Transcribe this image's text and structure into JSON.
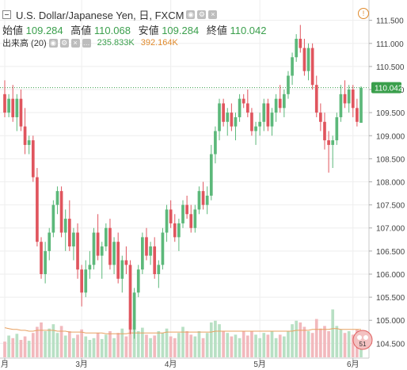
{
  "header": {
    "title": "U.S. Dollar/Japanese Yen, 日, FXCM",
    "ohlc": [
      {
        "label": "始値",
        "value": "109.284"
      },
      {
        "label": "高値",
        "value": "110.068"
      },
      {
        "label": "安値",
        "value": "109.284"
      },
      {
        "label": "終値",
        "value": "110.042"
      }
    ],
    "volume_label": "出来高 (20)",
    "volume_value": "235.833K",
    "volume_ma": "392.164K",
    "info_glyph": "!"
  },
  "badge_text": "51",
  "colors": {
    "up": "#5cb87a",
    "down": "#e0555e",
    "vol_up": "#b8e0c4",
    "vol_down": "#f2b9bd",
    "ma": "#e8a060",
    "price_line": "#3a9f4c",
    "grid": "#eeeeee"
  },
  "chart_data": {
    "type": "candlestick",
    "symbol": "U.S. Dollar/Japanese Yen",
    "interval": "日",
    "source": "FXCM",
    "y_ticks": [
      "111.500",
      "111.000",
      "110.500",
      "110.000",
      "109.500",
      "109.000",
      "108.500",
      "108.000",
      "107.500",
      "107.000",
      "106.500",
      "106.000",
      "105.500",
      "105.000",
      "104.500"
    ],
    "ylim": [
      104.3,
      111.7
    ],
    "x_ticks": [
      {
        "label": "月",
        "index": 0
      },
      {
        "label": "3月",
        "index": 19
      },
      {
        "label": "4月",
        "index": 41
      },
      {
        "label": "5月",
        "index": 63
      },
      {
        "label": "6月",
        "index": 86
      }
    ],
    "last_price": "110.042",
    "candles": [
      [
        109.9,
        110.2,
        109.4,
        109.5
      ],
      [
        109.5,
        109.9,
        109.4,
        109.8
      ],
      [
        109.8,
        110.1,
        109.3,
        109.4
      ],
      [
        109.4,
        109.9,
        109.1,
        109.8
      ],
      [
        109.8,
        110.0,
        109.1,
        109.2
      ],
      [
        109.2,
        109.6,
        108.6,
        108.8
      ],
      [
        108.8,
        109.0,
        108.6,
        108.9
      ],
      [
        108.9,
        109.0,
        108.0,
        108.1
      ],
      [
        108.1,
        108.3,
        106.6,
        106.7
      ],
      [
        106.7,
        106.8,
        105.9,
        106.0
      ],
      [
        106.0,
        106.7,
        105.8,
        106.5
      ],
      [
        106.5,
        107.0,
        106.3,
        106.9
      ],
      [
        106.9,
        107.6,
        106.8,
        107.5
      ],
      [
        107.5,
        107.9,
        107.3,
        107.8
      ],
      [
        107.8,
        107.9,
        106.8,
        106.9
      ],
      [
        106.9,
        107.4,
        106.5,
        107.2
      ],
      [
        107.2,
        107.6,
        106.5,
        106.6
      ],
      [
        106.6,
        107.0,
        106.3,
        106.9
      ],
      [
        106.9,
        107.1,
        105.9,
        106.1
      ],
      [
        106.1,
        106.2,
        105.3,
        105.6
      ],
      [
        105.6,
        106.3,
        105.5,
        106.1
      ],
      [
        106.1,
        106.5,
        105.9,
        106.2
      ],
      [
        106.2,
        107.0,
        106.1,
        106.9
      ],
      [
        106.9,
        107.3,
        106.3,
        106.4
      ],
      [
        106.4,
        106.7,
        105.9,
        106.6
      ],
      [
        106.6,
        107.1,
        106.5,
        107.0
      ],
      [
        107.0,
        107.2,
        106.1,
        106.2
      ],
      [
        106.2,
        106.8,
        106.0,
        106.7
      ],
      [
        106.7,
        106.9,
        105.8,
        105.9
      ],
      [
        105.9,
        106.4,
        105.6,
        106.3
      ],
      [
        106.3,
        106.6,
        106.0,
        106.2
      ],
      [
        106.2,
        106.3,
        104.7,
        104.8
      ],
      [
        104.8,
        105.7,
        104.6,
        105.6
      ],
      [
        105.6,
        106.2,
        105.5,
        106.1
      ],
      [
        106.1,
        106.9,
        106.0,
        106.8
      ],
      [
        106.8,
        107.0,
        106.3,
        106.4
      ],
      [
        106.4,
        106.7,
        106.2,
        106.6
      ],
      [
        106.6,
        106.8,
        105.9,
        106.0
      ],
      [
        106.0,
        106.3,
        105.7,
        106.2
      ],
      [
        106.2,
        107.0,
        106.1,
        106.9
      ],
      [
        106.9,
        107.5,
        106.7,
        107.4
      ],
      [
        107.4,
        107.6,
        107.0,
        107.1
      ],
      [
        107.1,
        107.3,
        106.7,
        106.8
      ],
      [
        106.8,
        107.2,
        106.5,
        107.1
      ],
      [
        107.1,
        107.6,
        107.0,
        107.5
      ],
      [
        107.5,
        107.7,
        107.2,
        107.3
      ],
      [
        107.3,
        107.5,
        106.9,
        107.0
      ],
      [
        107.0,
        107.5,
        106.9,
        107.4
      ],
      [
        107.4,
        107.9,
        107.3,
        107.8
      ],
      [
        107.8,
        108.0,
        107.4,
        107.5
      ],
      [
        107.5,
        107.9,
        107.3,
        107.7
      ],
      [
        107.7,
        108.8,
        107.6,
        108.6
      ],
      [
        108.6,
        109.2,
        108.4,
        109.1
      ],
      [
        109.1,
        109.8,
        108.9,
        109.7
      ],
      [
        109.7,
        109.8,
        109.2,
        109.3
      ],
      [
        109.3,
        109.6,
        109.0,
        109.5
      ],
      [
        109.5,
        109.7,
        109.1,
        109.2
      ],
      [
        109.2,
        109.5,
        108.9,
        109.4
      ],
      [
        109.4,
        109.9,
        109.3,
        109.8
      ],
      [
        109.8,
        109.9,
        109.6,
        109.7
      ],
      [
        109.7,
        110.0,
        109.4,
        109.5
      ],
      [
        109.5,
        109.6,
        109.0,
        109.1
      ],
      [
        109.1,
        109.3,
        108.8,
        109.2
      ],
      [
        109.2,
        109.5,
        109.0,
        109.3
      ],
      [
        109.3,
        109.8,
        109.1,
        109.7
      ],
      [
        109.7,
        109.8,
        109.1,
        109.2
      ],
      [
        109.2,
        109.6,
        109.0,
        109.5
      ],
      [
        109.5,
        109.9,
        109.3,
        109.8
      ],
      [
        109.8,
        110.1,
        109.5,
        109.6
      ],
      [
        109.6,
        110.0,
        109.4,
        109.9
      ],
      [
        109.9,
        110.4,
        109.8,
        110.3
      ],
      [
        110.3,
        110.8,
        110.1,
        110.7
      ],
      [
        110.7,
        111.2,
        110.6,
        111.1
      ],
      [
        111.1,
        111.4,
        110.8,
        110.9
      ],
      [
        110.9,
        111.1,
        110.3,
        110.4
      ],
      [
        110.4,
        111.0,
        110.2,
        110.9
      ],
      [
        110.9,
        111.0,
        110.0,
        110.1
      ],
      [
        110.1,
        110.3,
        109.4,
        109.5
      ],
      [
        109.5,
        109.7,
        109.1,
        109.3
      ],
      [
        109.3,
        109.5,
        108.7,
        108.9
      ],
      [
        108.9,
        109.1,
        108.2,
        108.8
      ],
      [
        108.8,
        109.0,
        108.3,
        108.9
      ],
      [
        108.9,
        109.5,
        108.8,
        109.4
      ],
      [
        109.4,
        110.1,
        109.3,
        109.9
      ],
      [
        109.9,
        110.2,
        109.6,
        109.7
      ],
      [
        109.7,
        110.1,
        109.5,
        110.0
      ],
      [
        110.0,
        110.1,
        109.4,
        109.6
      ],
      [
        109.6,
        109.8,
        109.2,
        109.3
      ],
      [
        109.28,
        110.07,
        109.28,
        110.04
      ]
    ],
    "volume": [
      0.18,
      0.25,
      0.22,
      0.27,
      0.2,
      0.24,
      0.19,
      0.28,
      0.35,
      0.4,
      0.3,
      0.33,
      0.38,
      0.28,
      0.36,
      0.25,
      0.3,
      0.22,
      0.26,
      0.32,
      0.24,
      0.2,
      0.22,
      0.28,
      0.21,
      0.26,
      0.3,
      0.22,
      0.28,
      0.33,
      0.24,
      0.45,
      0.38,
      0.3,
      0.34,
      0.26,
      0.22,
      0.25,
      0.3,
      0.28,
      0.33,
      0.24,
      0.22,
      0.28,
      0.35,
      0.3,
      0.26,
      0.24,
      0.3,
      0.22,
      0.28,
      0.4,
      0.42,
      0.38,
      0.3,
      0.28,
      0.24,
      0.26,
      0.22,
      0.3,
      0.25,
      0.3,
      0.26,
      0.22,
      0.28,
      0.26,
      0.3,
      0.22,
      0.26,
      0.24,
      0.3,
      0.38,
      0.42,
      0.4,
      0.35,
      0.3,
      0.28,
      0.44,
      0.33,
      0.36,
      0.3,
      0.55,
      0.36,
      0.32,
      0.28,
      0.3,
      0.26,
      0.32,
      0.2
    ],
    "volume_ma": [
      0.34,
      0.33,
      0.32,
      0.32,
      0.31,
      0.31,
      0.3,
      0.3,
      0.31,
      0.31,
      0.31,
      0.31,
      0.31,
      0.3,
      0.3,
      0.3,
      0.29,
      0.29,
      0.29,
      0.29,
      0.28,
      0.28,
      0.28,
      0.28,
      0.28,
      0.27,
      0.27,
      0.27,
      0.27,
      0.27,
      0.27,
      0.28,
      0.28,
      0.28,
      0.28,
      0.28,
      0.28,
      0.28,
      0.28,
      0.28,
      0.29,
      0.29,
      0.29,
      0.29,
      0.29,
      0.29,
      0.29,
      0.29,
      0.29,
      0.29,
      0.29,
      0.29,
      0.3,
      0.3,
      0.3,
      0.3,
      0.3,
      0.3,
      0.3,
      0.3,
      0.3,
      0.3,
      0.3,
      0.3,
      0.3,
      0.3,
      0.3,
      0.3,
      0.3,
      0.3,
      0.3,
      0.3,
      0.31,
      0.31,
      0.31,
      0.31,
      0.32,
      0.32,
      0.32,
      0.32,
      0.32,
      0.33,
      0.33,
      0.32,
      0.32,
      0.32,
      0.32,
      0.32,
      0.32
    ]
  }
}
